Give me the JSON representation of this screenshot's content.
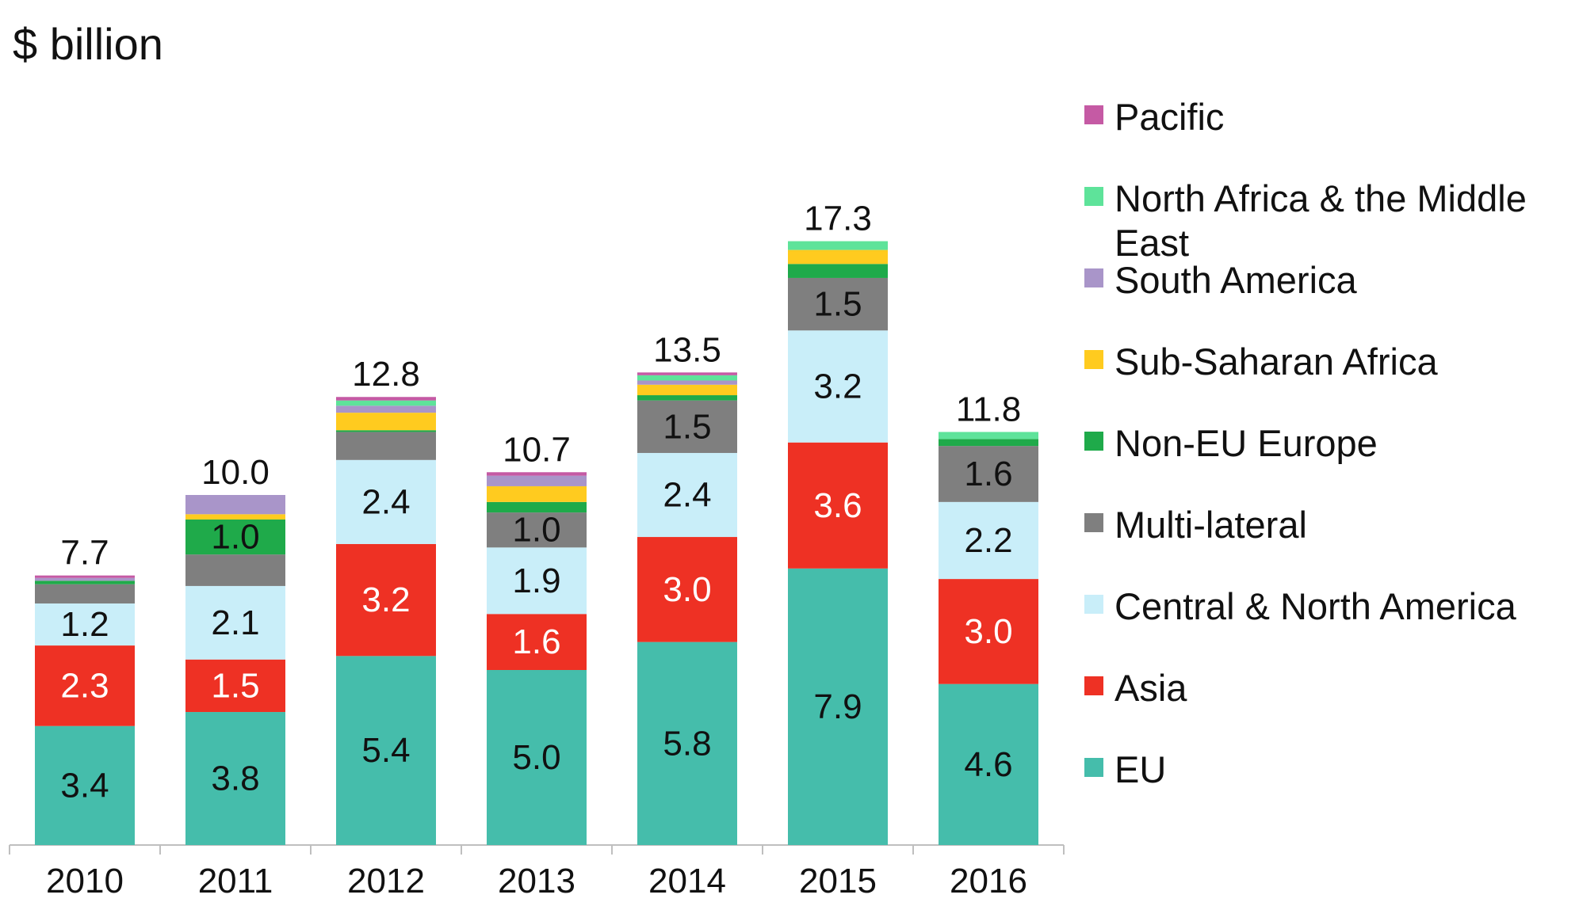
{
  "chart_data": {
    "type": "bar",
    "stacked": true,
    "unit_label": "$ billion",
    "categories": [
      "2010",
      "2011",
      "2012",
      "2013",
      "2014",
      "2015",
      "2016"
    ],
    "totals": [
      "7.7",
      "10.0",
      "12.8",
      "10.7",
      "13.5",
      "17.3",
      "11.8"
    ],
    "series": [
      {
        "name": "EU",
        "color": "#45BDAB",
        "label_color": "#111111",
        "values": [
          3.4,
          3.8,
          5.4,
          5.0,
          5.8,
          7.9,
          4.6
        ],
        "labels": [
          "3.4",
          "3.8",
          "5.4",
          "5.0",
          "5.8",
          "7.9",
          "4.6"
        ]
      },
      {
        "name": "Asia",
        "color": "#EE3124",
        "label_color": "#FFFFFF",
        "values": [
          2.3,
          1.5,
          3.2,
          1.6,
          3.0,
          3.6,
          3.0
        ],
        "labels": [
          "2.3",
          "1.5",
          "3.2",
          "1.6",
          "3.0",
          "3.6",
          "3.0"
        ]
      },
      {
        "name": "Central & North America",
        "color": "#C9EEF9",
        "label_color": "#111111",
        "values": [
          1.2,
          2.1,
          2.4,
          1.9,
          2.4,
          3.2,
          2.2
        ],
        "labels": [
          "1.2",
          "2.1",
          "2.4",
          "1.9",
          "2.4",
          "3.2",
          "2.2"
        ]
      },
      {
        "name": "Multi-lateral",
        "color": "#7F7F7F",
        "label_color": "#111111",
        "values": [
          0.55,
          0.9,
          0.8,
          1.0,
          1.5,
          1.5,
          1.6
        ],
        "labels": [
          "",
          "",
          "",
          "1.0",
          "1.5",
          "1.5",
          "1.6"
        ]
      },
      {
        "name": "Non-EU Europe",
        "color": "#1FAA4A",
        "label_color": "#111111",
        "values": [
          0.1,
          1.0,
          0.05,
          0.3,
          0.15,
          0.4,
          0.2
        ],
        "labels": [
          "",
          "1.0",
          "",
          "",
          "",
          "",
          ""
        ]
      },
      {
        "name": "Sub-Saharan Africa",
        "color": "#FFCB1F",
        "label_color": "#111111",
        "values": [
          0.0,
          0.15,
          0.5,
          0.45,
          0.3,
          0.4,
          0.0
        ],
        "labels": [
          "",
          "",
          "",
          "",
          "",
          "",
          ""
        ]
      },
      {
        "name": "South America",
        "color": "#A995C9",
        "label_color": "#111111",
        "values": [
          0.08,
          0.55,
          0.2,
          0.3,
          0.12,
          0.0,
          0.0
        ],
        "labels": [
          "",
          "",
          "",
          "",
          "",
          "",
          ""
        ]
      },
      {
        "name": "North Africa & the Middle East",
        "color": "#5EE39A",
        "label_color": "#111111",
        "values": [
          0.0,
          0.0,
          0.15,
          0.0,
          0.15,
          0.25,
          0.2
        ],
        "labels": [
          "",
          "",
          "",
          "",
          "",
          "",
          ""
        ]
      },
      {
        "name": "Pacific",
        "color": "#C55AA4",
        "label_color": "#111111",
        "values": [
          0.07,
          0.0,
          0.1,
          0.1,
          0.08,
          0.0,
          0.0
        ],
        "labels": [
          "",
          "",
          "",
          "",
          "",
          "",
          ""
        ]
      }
    ],
    "ylim": [
      0,
      17.3
    ],
    "grid": false,
    "legend_position": "right"
  }
}
